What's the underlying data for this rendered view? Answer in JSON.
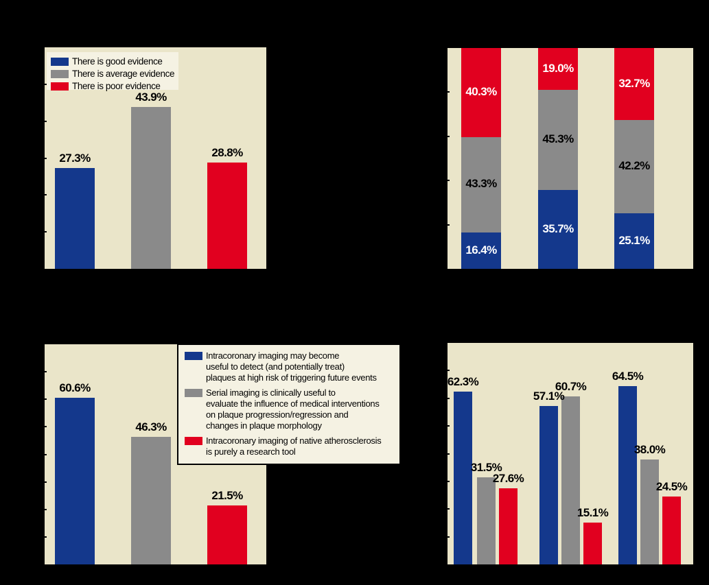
{
  "figure": {
    "background": "#000000",
    "panel_background": "#eae5c9",
    "legend_background": "#f5f2e3"
  },
  "colors": {
    "blue": "#14388c",
    "gray": "#8a8a8a",
    "red": "#e1001f",
    "label_dark": "#000000",
    "label_light": "#ffffff"
  },
  "chart_data": [
    {
      "id": "evidence-opinion",
      "position": "top-left",
      "type": "bar",
      "values": [
        27.3,
        43.9,
        28.8
      ],
      "labels": [
        "27.3%",
        "43.9%",
        "28.8%"
      ],
      "bar_colors": [
        "blue",
        "gray",
        "red"
      ],
      "ylim": [
        0,
        60
      ],
      "yticks": [
        10,
        20,
        30,
        40,
        50
      ],
      "grid": false,
      "legend_position": "top-left-inside",
      "legend": [
        {
          "color": "blue",
          "lines": [
            "There is good evidence"
          ]
        },
        {
          "color": "gray",
          "lines": [
            "There is average evidence"
          ]
        },
        {
          "color": "red",
          "lines": [
            "There is poor evidence"
          ]
        }
      ]
    },
    {
      "id": "evidence-stacked",
      "position": "top-right",
      "type": "stacked-bar",
      "series": [
        {
          "color": "blue",
          "values": [
            16.4,
            35.7,
            25.1
          ],
          "labels": [
            "16.4%",
            "35.7%",
            "25.1%"
          ],
          "label_color": "label_light"
        },
        {
          "color": "gray",
          "values": [
            43.3,
            45.3,
            42.2
          ],
          "labels": [
            "43.3%",
            "45.3%",
            "42.2%"
          ],
          "label_color": "label_dark"
        },
        {
          "color": "red",
          "values": [
            40.3,
            19.0,
            32.7
          ],
          "labels": [
            "40.3%",
            "19.0%",
            "32.7%"
          ],
          "label_color": "label_light"
        }
      ],
      "ylim": [
        0,
        100
      ],
      "yticks": [
        20,
        40,
        60,
        80
      ],
      "grid": false
    },
    {
      "id": "imaging-statements",
      "position": "bottom-left",
      "type": "bar",
      "values": [
        60.6,
        46.3,
        21.5
      ],
      "labels": [
        "60.6%",
        "46.3%",
        "21.5%"
      ],
      "bar_colors": [
        "blue",
        "gray",
        "red"
      ],
      "ylim": [
        0,
        80
      ],
      "yticks": [
        10,
        20,
        30,
        40,
        50,
        60,
        70
      ],
      "grid": false,
      "legend_position": "top-right-overlapping",
      "legend": [
        {
          "color": "blue",
          "lines": [
            "Intracoronary imaging may become",
            "useful to detect (and potentially treat)",
            "plaques at high risk of triggering future events"
          ]
        },
        {
          "color": "gray",
          "lines": [
            "Serial imaging is clinically useful to",
            "evaluate the influence of medical interventions",
            "on plaque progression/regression and",
            "changes in plaque morphology"
          ]
        },
        {
          "color": "red",
          "lines": [
            "Intracoronary imaging of native atherosclerosis",
            "is purely a research tool"
          ]
        }
      ]
    },
    {
      "id": "imaging-grouped",
      "position": "bottom-right",
      "type": "grouped-bar",
      "series": [
        {
          "color": "blue",
          "values": [
            62.3,
            57.1,
            64.5
          ],
          "labels": [
            "62.3%",
            "57.1%",
            "64.5%"
          ]
        },
        {
          "color": "gray",
          "values": [
            31.5,
            60.7,
            38.0
          ],
          "labels": [
            "31.5%",
            "60.7%",
            "38.0%"
          ]
        },
        {
          "color": "red",
          "values": [
            27.6,
            15.1,
            24.5
          ],
          "labels": [
            "27.6%",
            "15.1%",
            "24.5%"
          ]
        }
      ],
      "ylim": [
        0,
        80
      ],
      "yticks": [
        10,
        20,
        30,
        40,
        50,
        60,
        70
      ],
      "grid": false
    }
  ]
}
